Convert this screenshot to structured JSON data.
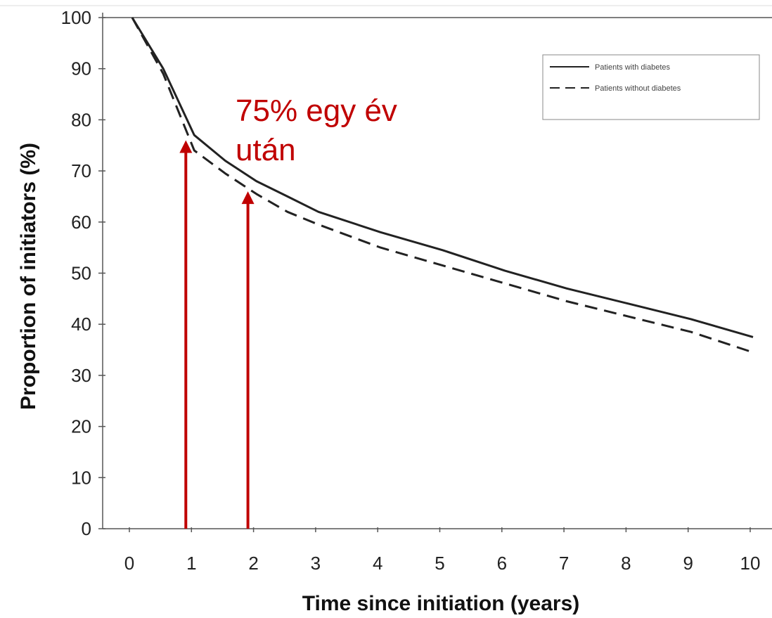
{
  "chart_data": {
    "type": "line",
    "title": "",
    "xlabel": "Time since initiation (years)",
    "ylabel": "Proportion of initiators (%)",
    "xlim": [
      0,
      10
    ],
    "ylim": [
      0,
      100
    ],
    "x_ticks": [
      0,
      1,
      2,
      3,
      4,
      5,
      6,
      7,
      8,
      9,
      10
    ],
    "y_ticks": [
      0,
      10,
      20,
      30,
      40,
      50,
      60,
      70,
      80,
      90,
      100
    ],
    "grid": false,
    "legend_position": "top-right",
    "series": [
      {
        "name": "Patients with diabetes",
        "style": "solid",
        "color": "#222222",
        "x": [
          0,
          0.5,
          1,
          1.5,
          2,
          2.5,
          3,
          4,
          5,
          6,
          7,
          8,
          9,
          10
        ],
        "y": [
          100,
          90,
          77,
          72,
          68,
          65,
          62,
          58,
          54.5,
          50.5,
          47,
          44,
          41,
          37.5
        ]
      },
      {
        "name": "Patients without diabetes",
        "style": "dashed",
        "color": "#222222",
        "x": [
          0,
          0.5,
          1,
          1.5,
          2,
          2.5,
          3,
          4,
          5,
          6,
          7,
          8,
          9,
          10
        ],
        "y": [
          100,
          89,
          74,
          69.5,
          65.5,
          62,
          59.5,
          55,
          51.5,
          48,
          44.5,
          41.5,
          38.5,
          34.5
        ]
      }
    ],
    "annotations": [
      {
        "type": "arrow",
        "x": 1,
        "y_from": 0,
        "y_to": 76,
        "color": "#c00000"
      },
      {
        "type": "arrow",
        "x": 2,
        "y_from": 0,
        "y_to": 66,
        "color": "#c00000"
      },
      {
        "type": "text",
        "lines": [
          "75% egy év",
          "után"
        ],
        "color": "#c00000"
      }
    ]
  }
}
